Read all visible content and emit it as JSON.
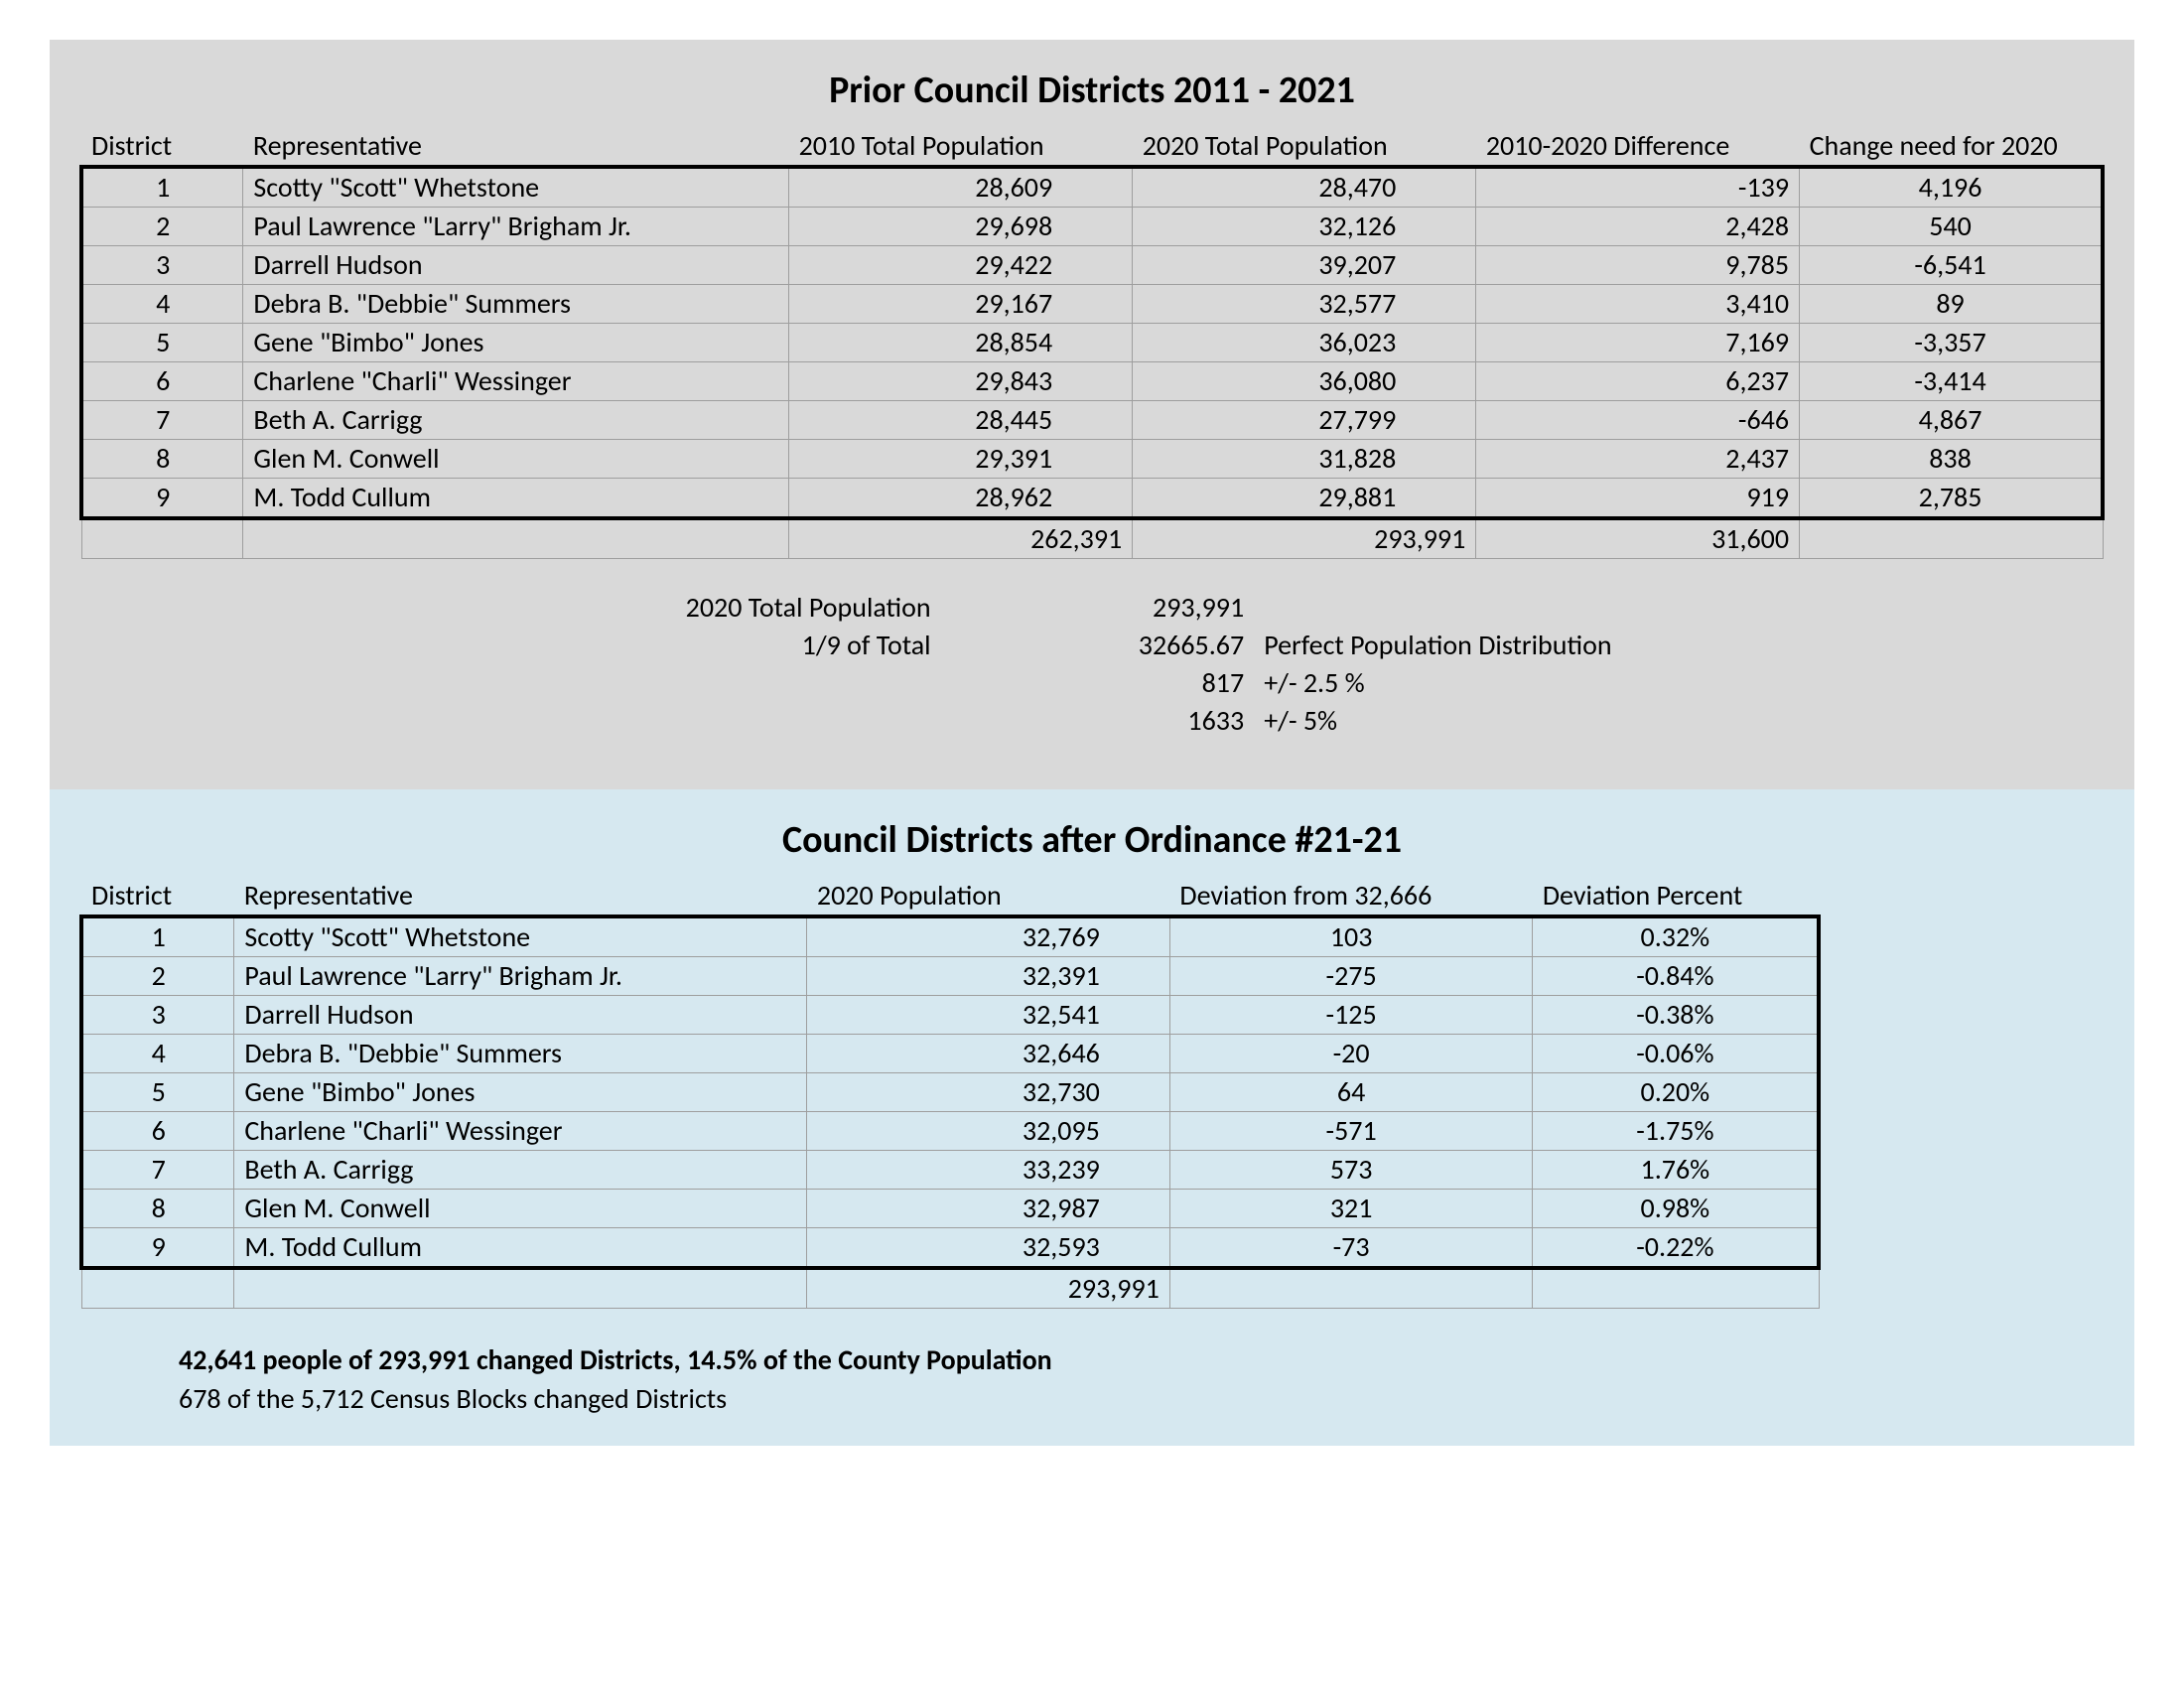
{
  "section1": {
    "title": "Prior Council Districts 2011 - 2021",
    "headers": {
      "district": "District",
      "rep": "Representative",
      "pop2010": "2010 Total Population",
      "pop2020": "2020 Total Population",
      "diff": "2010-2020 Difference",
      "change": "Change need for 2020"
    },
    "rows": [
      {
        "district": "1",
        "rep": "Scotty \"Scott\" Whetstone",
        "pop2010": "28,609",
        "pop2020": "28,470",
        "diff": "-139",
        "change": "4,196"
      },
      {
        "district": "2",
        "rep": "Paul Lawrence \"Larry\" Brigham Jr.",
        "pop2010": "29,698",
        "pop2020": "32,126",
        "diff": "2,428",
        "change": "540"
      },
      {
        "district": "3",
        "rep": "Darrell Hudson",
        "pop2010": "29,422",
        "pop2020": "39,207",
        "diff": "9,785",
        "change": "-6,541"
      },
      {
        "district": "4",
        "rep": "Debra B. \"Debbie\" Summers",
        "pop2010": "29,167",
        "pop2020": "32,577",
        "diff": "3,410",
        "change": "89"
      },
      {
        "district": "5",
        "rep": "Gene \"Bimbo\" Jones",
        "pop2010": "28,854",
        "pop2020": "36,023",
        "diff": "7,169",
        "change": "-3,357"
      },
      {
        "district": "6",
        "rep": "Charlene \"Charli\" Wessinger",
        "pop2010": "29,843",
        "pop2020": "36,080",
        "diff": "6,237",
        "change": "-3,414"
      },
      {
        "district": "7",
        "rep": "Beth A. Carrigg",
        "pop2010": "28,445",
        "pop2020": "27,799",
        "diff": "-646",
        "change": "4,867"
      },
      {
        "district": "8",
        "rep": "Glen M. Conwell",
        "pop2010": "29,391",
        "pop2020": "31,828",
        "diff": "2,437",
        "change": "838"
      },
      {
        "district": "9",
        "rep": "M. Todd Cullum",
        "pop2010": "28,962",
        "pop2020": "29,881",
        "diff": "919",
        "change": "2,785"
      }
    ],
    "totals": {
      "pop2010": "262,391",
      "pop2020": "293,991",
      "diff": "31,600"
    },
    "summary": {
      "popLabel": "2020 Total Population",
      "popVal": "293,991",
      "ninthLabel": "1/9 of Total",
      "ninthVal": "32665.67",
      "ninthDesc": "Perfect Population Distribution",
      "tol25Val": "817",
      "tol25Desc": "+/- 2.5 %",
      "tol5Val": "1633",
      "tol5Desc": "+/- 5%"
    }
  },
  "section2": {
    "title": "Council Districts after Ordinance #21-21",
    "headers": {
      "district": "District",
      "rep": "Representative",
      "pop2020": "2020 Population",
      "dev": "Deviation from 32,666",
      "pct": "Deviation Percent"
    },
    "rows": [
      {
        "district": "1",
        "rep": "Scotty \"Scott\" Whetstone",
        "pop": "32,769",
        "dev": "103",
        "pct": "0.32%"
      },
      {
        "district": "2",
        "rep": "Paul Lawrence \"Larry\" Brigham Jr.",
        "pop": "32,391",
        "dev": "-275",
        "pct": "-0.84%"
      },
      {
        "district": "3",
        "rep": "Darrell Hudson",
        "pop": "32,541",
        "dev": "-125",
        "pct": "-0.38%"
      },
      {
        "district": "4",
        "rep": "Debra B. \"Debbie\" Summers",
        "pop": "32,646",
        "dev": "-20",
        "pct": "-0.06%"
      },
      {
        "district": "5",
        "rep": "Gene \"Bimbo\" Jones",
        "pop": "32,730",
        "dev": "64",
        "pct": "0.20%"
      },
      {
        "district": "6",
        "rep": "Charlene \"Charli\" Wessinger",
        "pop": "32,095",
        "dev": "-571",
        "pct": "-1.75%"
      },
      {
        "district": "7",
        "rep": "Beth A. Carrigg",
        "pop": "33,239",
        "dev": "573",
        "pct": "1.76%"
      },
      {
        "district": "8",
        "rep": "Glen M. Conwell",
        "pop": "32,987",
        "dev": "321",
        "pct": "0.98%"
      },
      {
        "district": "9",
        "rep": "M. Todd Cullum",
        "pop": "32,593",
        "dev": "-73",
        "pct": "-0.22%"
      }
    ],
    "totals": {
      "pop": "293,991"
    },
    "footerBold": "42,641 people of 293,991 changed Districts, 14.5% of the County Population",
    "footerSub": "678 of the 5,712 Census Blocks changed Districts"
  },
  "style": {
    "grayBg": "#d9d9d9",
    "blueBg": "#d6e8f0",
    "gridBorder": "#9e9e9e",
    "heavyBorder": "#000000",
    "titleFontSize": 38,
    "cellFontSize": 28
  }
}
